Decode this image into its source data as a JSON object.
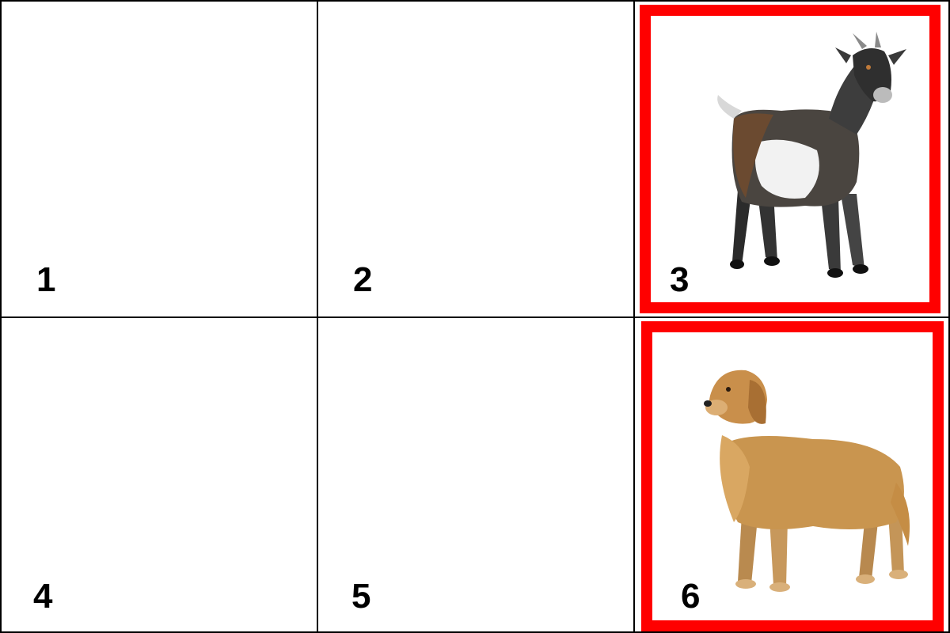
{
  "grid": {
    "cells": [
      {
        "number": "1",
        "image": "",
        "selected": false
      },
      {
        "number": "2",
        "image": "",
        "selected": false
      },
      {
        "number": "3",
        "image": "goat-image",
        "selected": true
      },
      {
        "number": "4",
        "image": "",
        "selected": false
      },
      {
        "number": "5",
        "image": "",
        "selected": false
      },
      {
        "number": "6",
        "image": "dog-image",
        "selected": true
      }
    ]
  },
  "colors": {
    "selection": "#ff0000",
    "grid_line": "#000000",
    "background": "#ffffff"
  }
}
